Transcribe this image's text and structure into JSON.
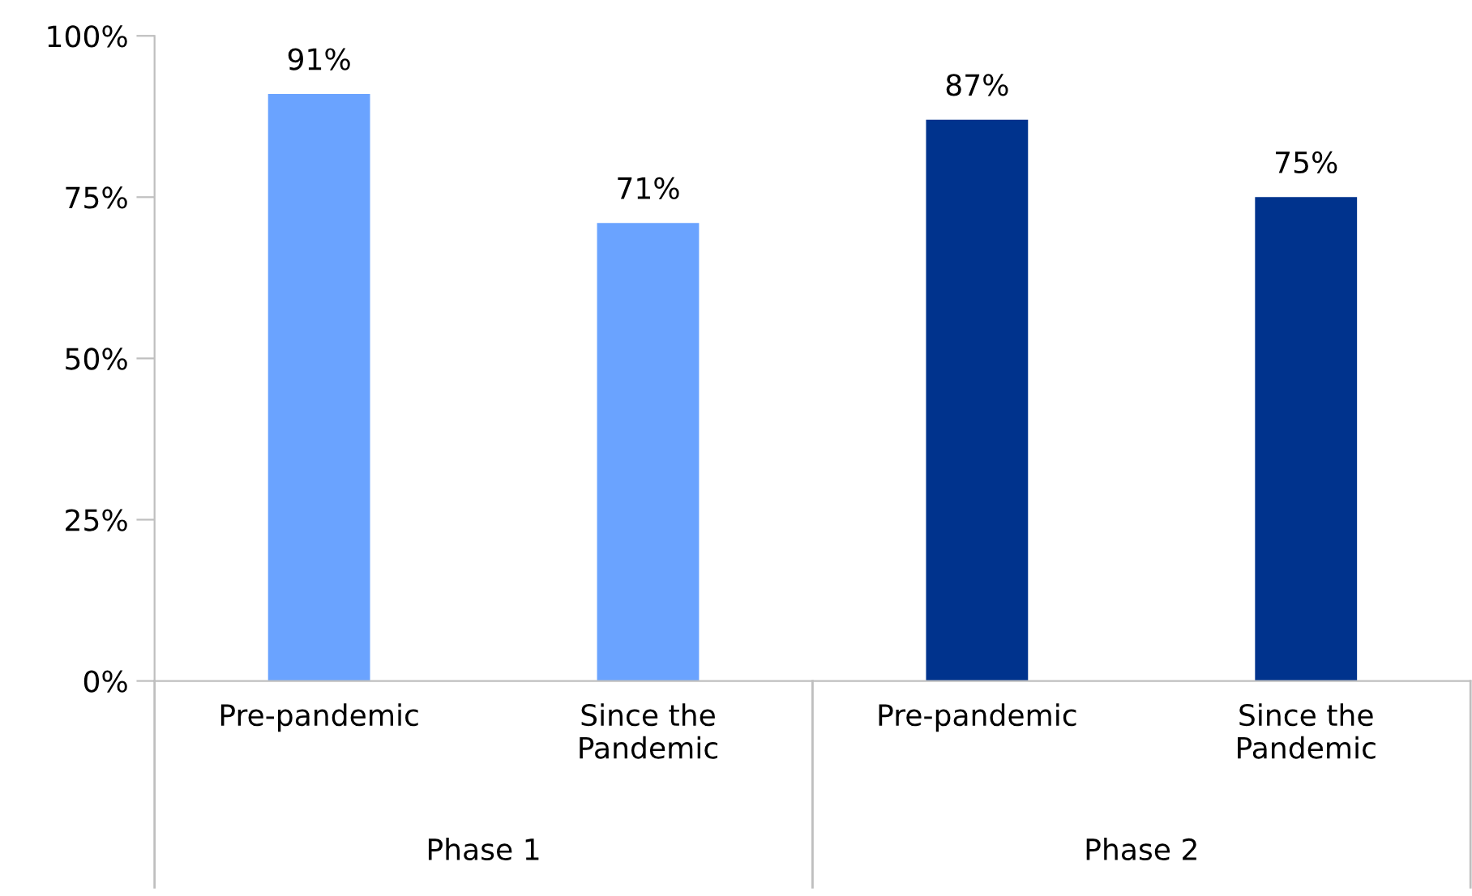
{
  "chart_data": {
    "type": "bar",
    "categories": [
      "Pre-pandemic",
      "Since the\nPandemic",
      "Pre-pandemic",
      "Since the\nPandemic"
    ],
    "values": [
      91,
      71,
      87,
      75
    ],
    "colors": [
      "#6aa3ff",
      "#6aa3ff",
      "#00338d",
      "#00338d"
    ],
    "value_labels": [
      "91%",
      "71%",
      "87%",
      "75%"
    ],
    "ylim": [
      0,
      100
    ],
    "yticks": [
      {
        "value": 0,
        "label": "0%"
      },
      {
        "value": 25,
        "label": "25%"
      },
      {
        "value": 50,
        "label": "50%"
      },
      {
        "value": 75,
        "label": "75%"
      },
      {
        "value": 100,
        "label": "100%"
      }
    ],
    "annotations": [
      "Phase 1",
      "Phase 2"
    ],
    "grid": false,
    "legend": false
  }
}
